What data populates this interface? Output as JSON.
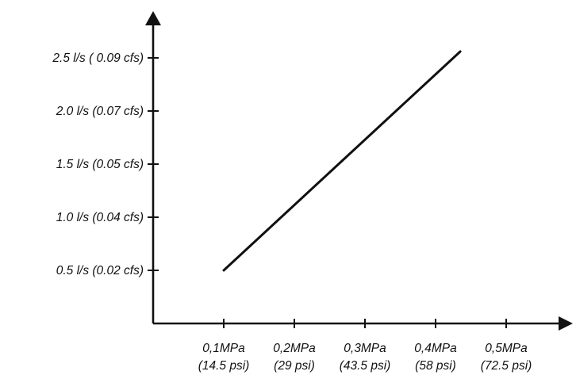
{
  "chart_data": {
    "type": "line",
    "title": "",
    "xlabel": "",
    "ylabel": "",
    "x_ticks": [
      {
        "value": 0.1,
        "label": "0,1MPa",
        "sublabel": "(14.5 psi)"
      },
      {
        "value": 0.2,
        "label": "0,2MPa",
        "sublabel": "(29 psi)"
      },
      {
        "value": 0.3,
        "label": "0,3MPa",
        "sublabel": "(43.5 psi)"
      },
      {
        "value": 0.4,
        "label": "0,4MPa",
        "sublabel": "(58 psi)"
      },
      {
        "value": 0.5,
        "label": "0,5MPa",
        "sublabel": "(72.5 psi)"
      }
    ],
    "y_ticks": [
      {
        "value": 0.5,
        "label": "0.5 l/s (0.02 cfs)"
      },
      {
        "value": 1.0,
        "label": "1.0 l/s (0.04 cfs)"
      },
      {
        "value": 1.5,
        "label": "1.5 l/s (0.05 cfs)"
      },
      {
        "value": 2.0,
        "label": "2.0 l/s (0.07 cfs)"
      },
      {
        "value": 2.5,
        "label": "2.5 l/s ( 0.09 cfs)"
      }
    ],
    "xlim": [
      0,
      0.5
    ],
    "ylim": [
      0,
      2.5
    ],
    "series": [
      {
        "x": [
          0.1,
          0.435
        ],
        "y": [
          0.5,
          2.56
        ]
      }
    ],
    "grid": false,
    "line_color": "#111111"
  }
}
